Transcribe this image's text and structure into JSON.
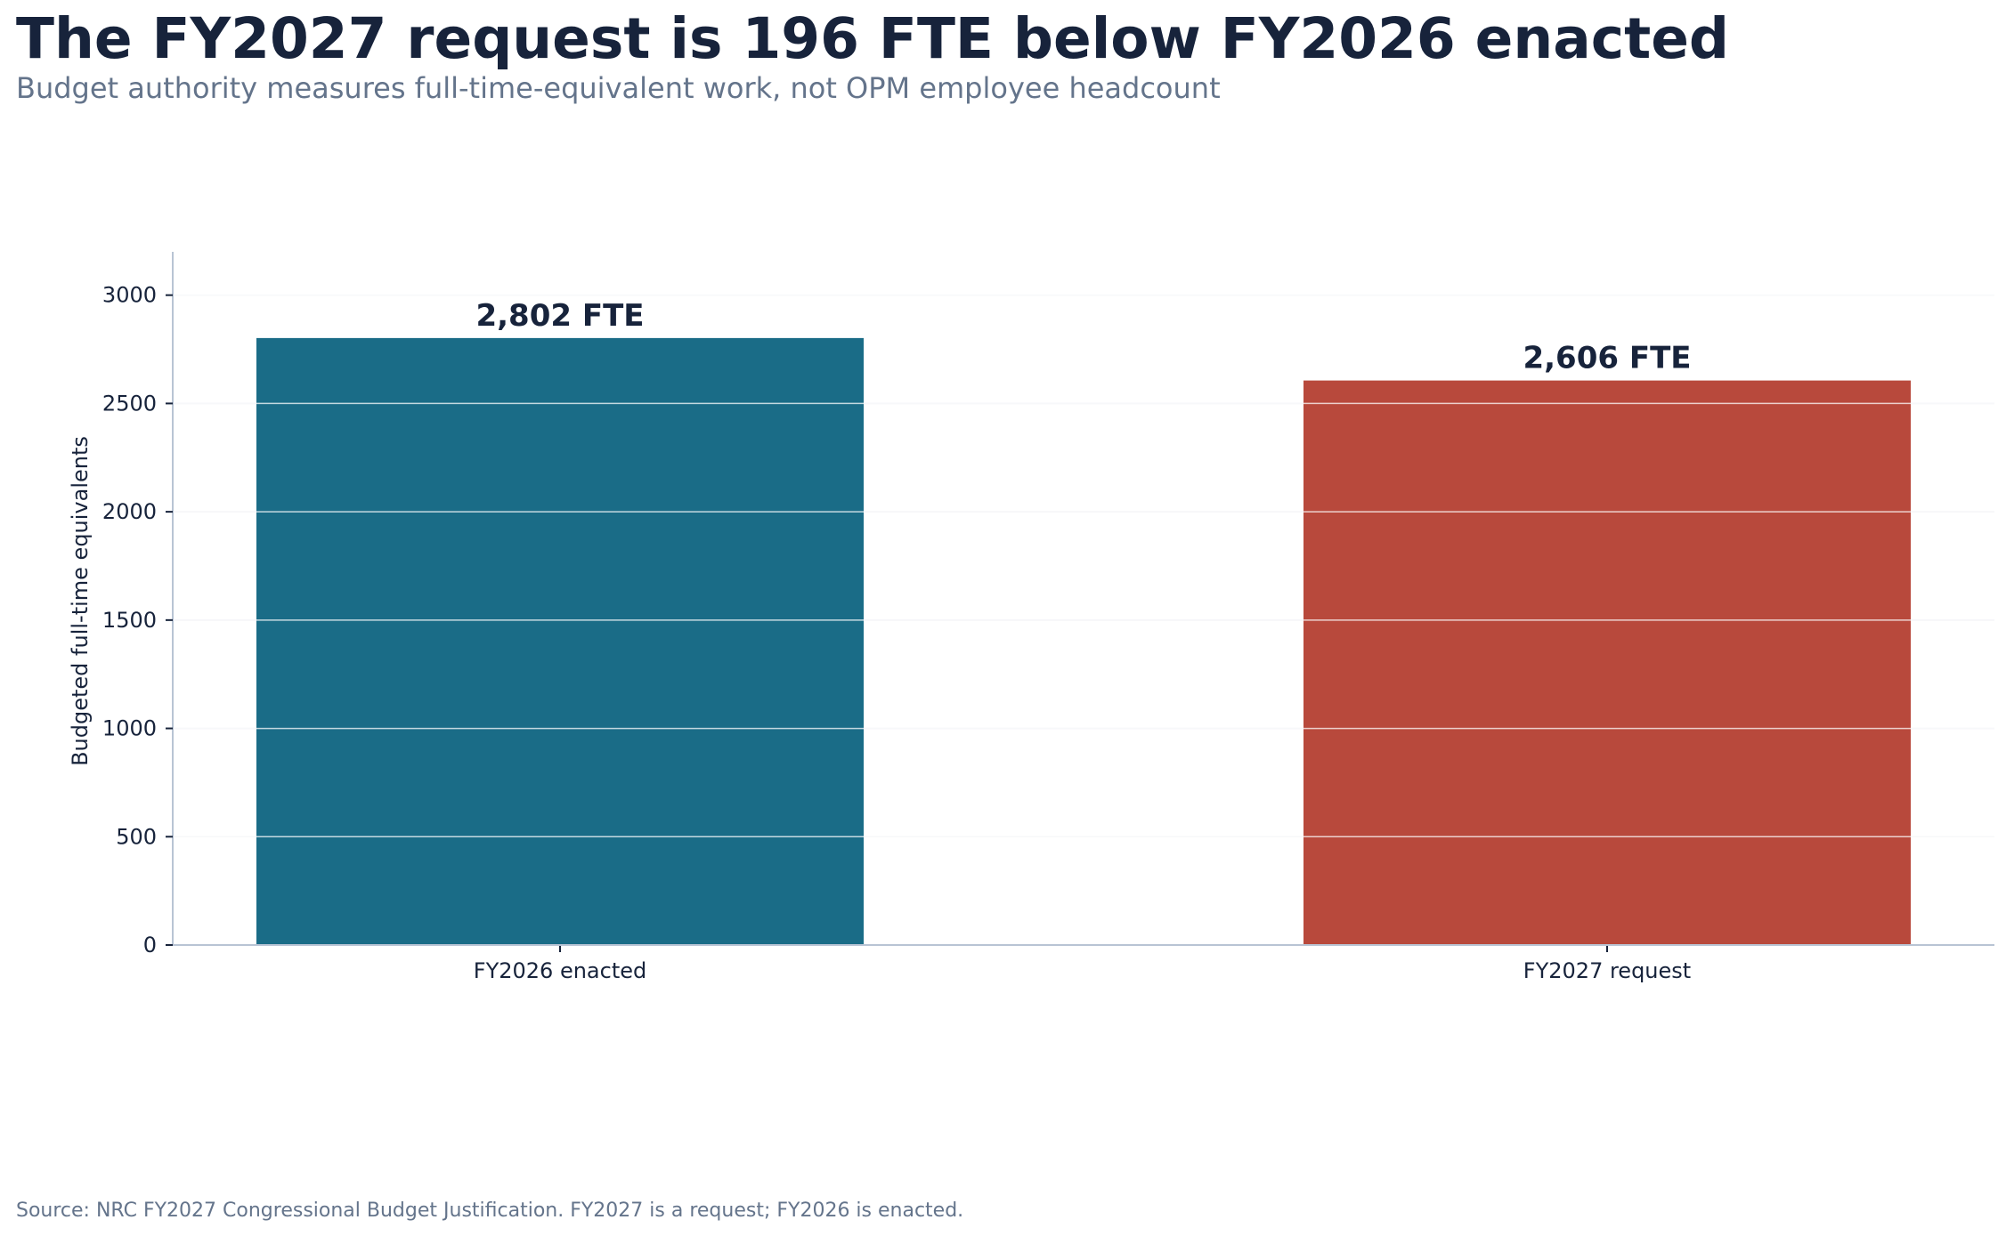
{
  "chart_data": {
    "type": "bar",
    "title": "The FY2027 request is 196 FTE below FY2026 enacted",
    "subtitle": "Budget authority measures full-time-equivalent work, not OPM employee headcount",
    "source": "Source: NRC FY2027 Congressional Budget Justification. FY2027 is a request; FY2026 is enacted.",
    "xlabel": "",
    "ylabel": "Budgeted full-time equivalents",
    "categories": [
      "FY2026 enacted",
      "FY2027 request"
    ],
    "values": [
      2802,
      2606
    ],
    "data_labels": [
      "2,802 FTE",
      "2,606 FTE"
    ],
    "colors": [
      "#1a6c87",
      "#b8493c"
    ],
    "ylim": [
      0,
      3200
    ],
    "yticks": [
      0,
      500,
      1000,
      1500,
      2000,
      2500,
      3000
    ],
    "grid": true,
    "gridline_color": "#dde2ea"
  }
}
